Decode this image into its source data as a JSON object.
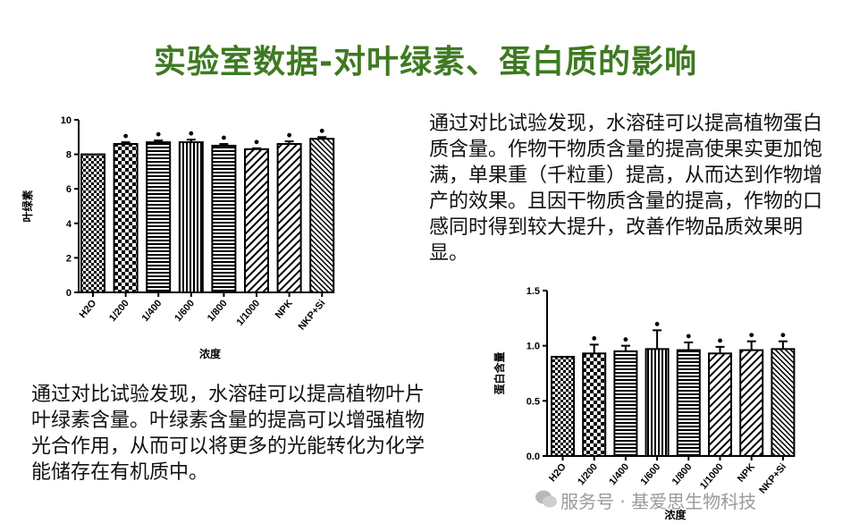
{
  "title": "实验室数据-对叶绿素、蛋白质的影响",
  "paragraph_protein": "通过对比试验发现，水溶硅可以提高植物蛋白质含量。作物干物质含量的提高使果实更加饱满，单果重（千粒重）提高，从而达到作物增产的效果。且因干物质含量的提高，作物的口感同时得到较大提升，改善作物品质效果明显。",
  "paragraph_chlorophyll": "通过对比试验发现，水溶硅可以提高植物叶片叶绿素含量。叶绿素含量的提高可以增强植物光合作用，从而可以将更多的光能转化为化学能储存在有机质中。",
  "watermark": "服务号 · 基爱思生物科技",
  "chart_data": [
    {
      "type": "bar",
      "title": "",
      "xlabel": "浓度",
      "ylabel": "叶绿素",
      "ylim": [
        0,
        10
      ],
      "yticks": [
        0,
        2,
        4,
        6,
        8,
        10
      ],
      "categories": [
        "H2O",
        "1/200",
        "1/400",
        "1/600",
        "1/800",
        "1/1000",
        "NPK",
        "NKP+Si"
      ],
      "values": [
        8.0,
        8.6,
        8.7,
        8.7,
        8.5,
        8.3,
        8.6,
        8.9
      ],
      "errors": [
        0.0,
        0.1,
        0.1,
        0.15,
        0.1,
        0.05,
        0.15,
        0.1
      ],
      "markers": [
        "",
        "•",
        "•",
        "•",
        "•",
        "•",
        "•",
        "•"
      ],
      "patterns": [
        "checker",
        "checker-bold",
        "hlines",
        "vlines",
        "hlines",
        "diagonal",
        "diagonal",
        "diagonal-fine"
      ]
    },
    {
      "type": "bar",
      "title": "",
      "xlabel": "浓度",
      "ylabel": "蛋白含量",
      "ylim": [
        0,
        1.5
      ],
      "yticks": [
        0.0,
        0.5,
        1.0,
        1.5
      ],
      "categories": [
        "H2O",
        "1/200",
        "1/400",
        "1/600",
        "1/800",
        "1/1000",
        "NPK",
        "NKP+Si"
      ],
      "values": [
        0.9,
        0.93,
        0.95,
        0.97,
        0.96,
        0.93,
        0.96,
        0.97
      ],
      "errors": [
        0.0,
        0.08,
        0.05,
        0.17,
        0.07,
        0.06,
        0.08,
        0.07
      ],
      "markers": [
        "",
        "•",
        "•",
        "•",
        "•",
        "•",
        "•",
        "•"
      ],
      "patterns": [
        "checker",
        "checker-bold",
        "hlines",
        "vlines",
        "hlines",
        "diagonal",
        "diagonal",
        "diagonal-fine"
      ]
    }
  ]
}
